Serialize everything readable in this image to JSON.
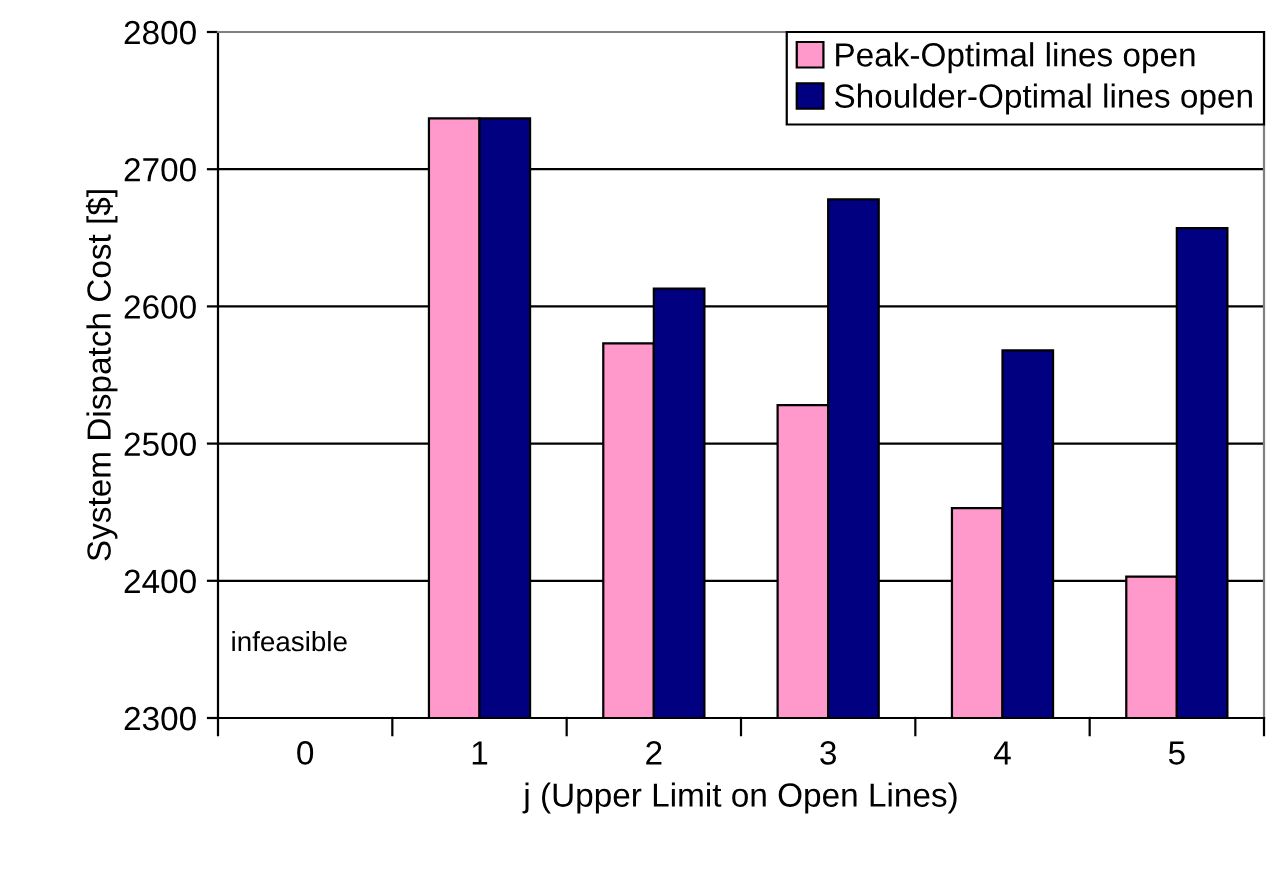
{
  "chart_data": {
    "type": "bar",
    "xlabel": "j (Upper Limit on Open Lines)",
    "ylabel": "System Dispatch Cost [$]",
    "categories": [
      "0",
      "1",
      "2",
      "3",
      "4",
      "5"
    ],
    "series": [
      {
        "name": "Peak-Optimal lines open",
        "color": "#ff99cc",
        "values": [
          null,
          2737,
          2573,
          2528,
          2453,
          2403
        ]
      },
      {
        "name": "Shoulder-Optimal lines open",
        "color": "#000080",
        "values": [
          null,
          2737,
          2613,
          2678,
          2568,
          2657
        ]
      }
    ],
    "ylim": [
      2300,
      2800
    ],
    "yticks": [
      2300,
      2400,
      2500,
      2600,
      2700,
      2800
    ],
    "grid": "y",
    "legend": "top right",
    "annotations": [
      "infeasible"
    ]
  }
}
